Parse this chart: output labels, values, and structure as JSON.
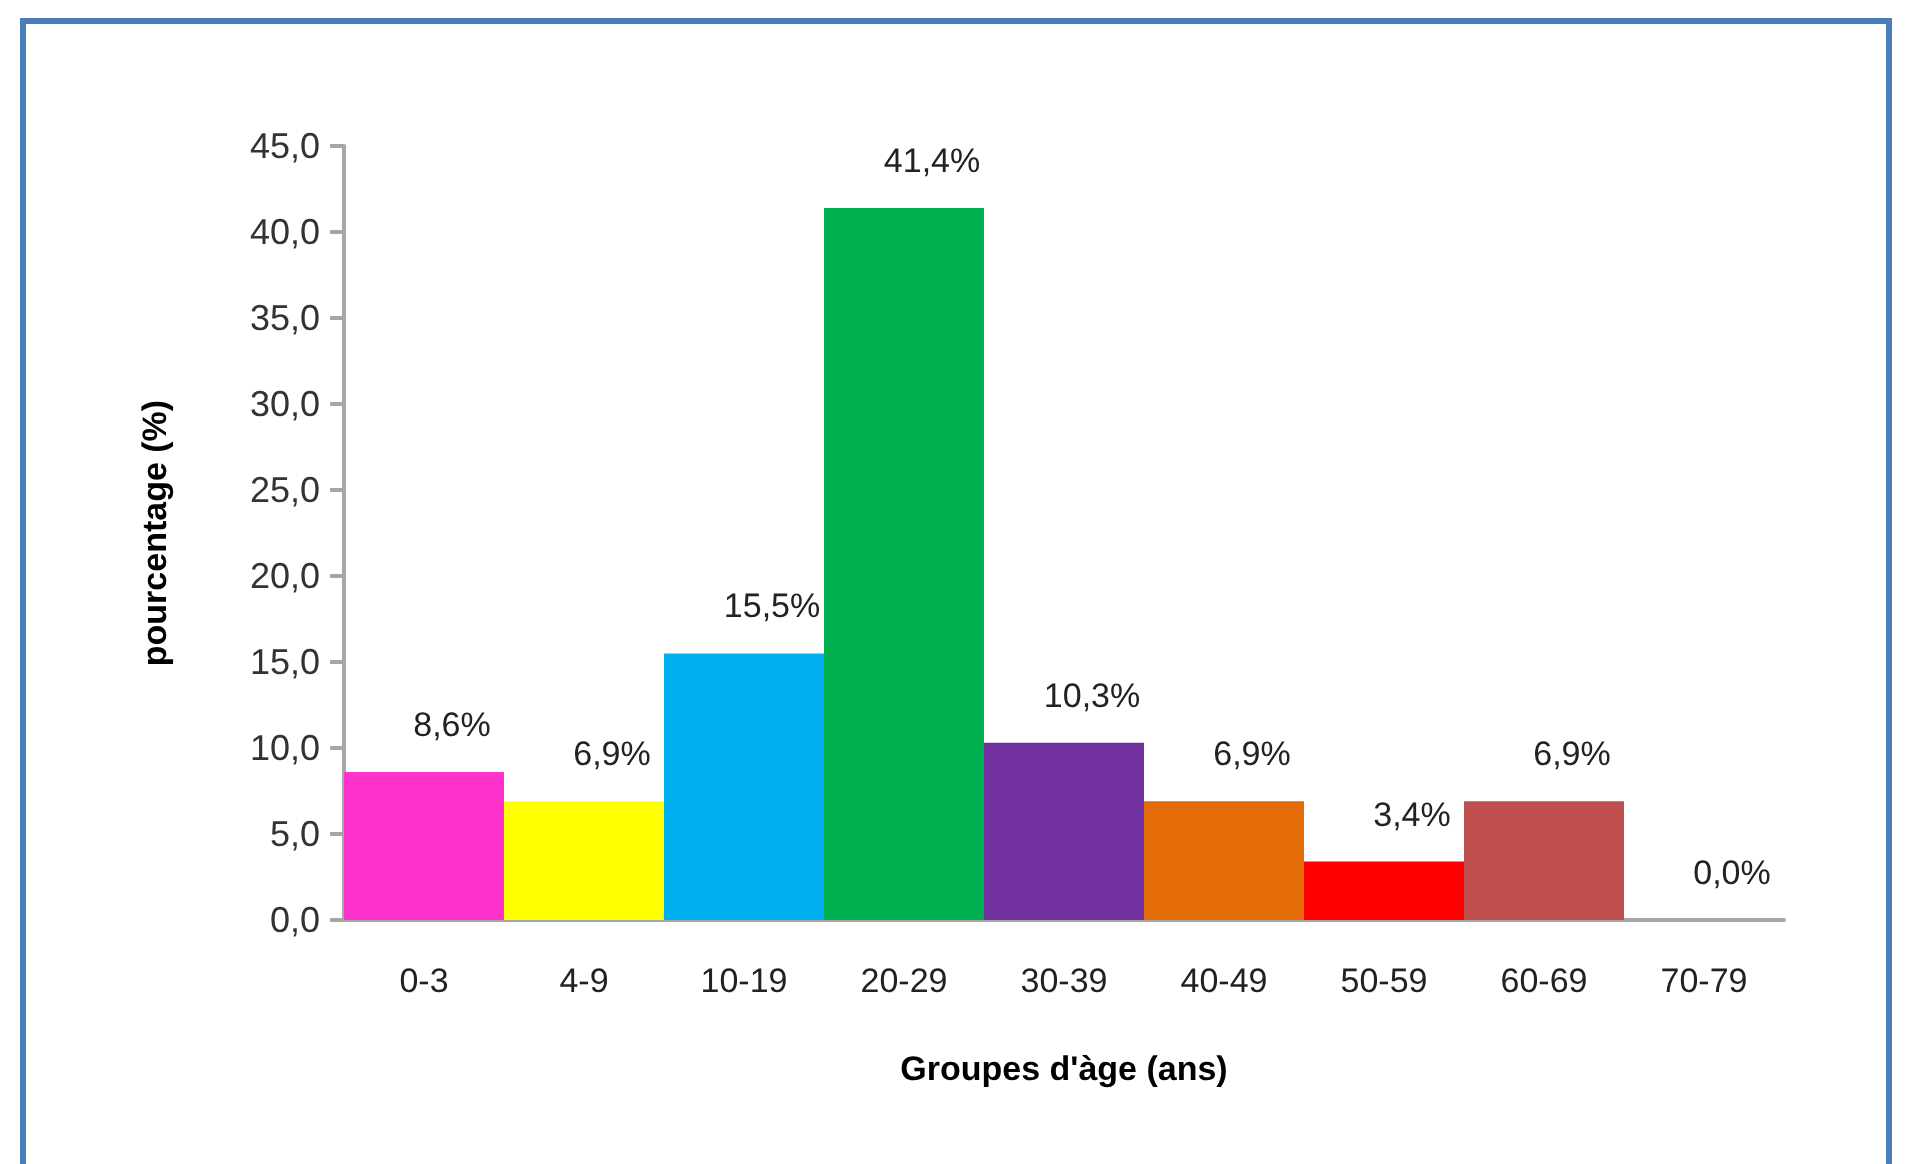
{
  "chart_data": {
    "type": "bar",
    "xlabel": "Groupes d'àge (ans)",
    "ylabel": "pourcentage (%)",
    "categories": [
      "0-3",
      "4-9",
      "10-19",
      "20-29",
      "30-39",
      "40-49",
      "50-59",
      "60-69",
      "70-79"
    ],
    "values": [
      8.6,
      6.9,
      15.5,
      41.4,
      10.3,
      6.9,
      3.4,
      6.9,
      0.0
    ],
    "colors": [
      "#ff33cc",
      "#ffff00",
      "#00b0f0",
      "#00b050",
      "#7030a0",
      "#e36c09",
      "#ff0000",
      "#c0504d",
      "#002060"
    ],
    "value_labels": [
      "8,6%",
      "6,9%",
      "15,5%",
      "41,4%",
      "10,3%",
      "6,9%",
      "3,4%",
      "6,9%",
      "0,0%"
    ],
    "ylim": [
      0,
      45
    ],
    "yticks": [
      {
        "value": 0,
        "label": "0,0"
      },
      {
        "value": 5,
        "label": "5,0"
      },
      {
        "value": 10,
        "label": "10,0"
      },
      {
        "value": 15,
        "label": "15,0"
      },
      {
        "value": 20,
        "label": "20,0"
      },
      {
        "value": 25,
        "label": "25,0"
      },
      {
        "value": 30,
        "label": "30,0"
      },
      {
        "value": 35,
        "label": "35,0"
      },
      {
        "value": 40,
        "label": "40,0"
      },
      {
        "value": 45,
        "label": "45,0"
      }
    ],
    "grid": false
  }
}
